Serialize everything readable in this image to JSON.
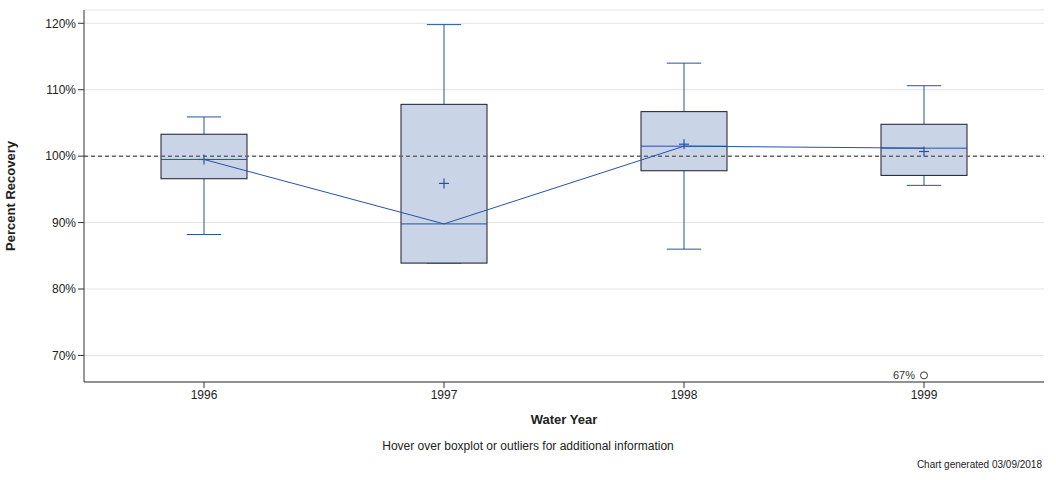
{
  "chart_data": {
    "type": "boxplot",
    "x_label": "Water Year",
    "y_label": "Percent Recovery",
    "footnote": "Hover over boxplot or outliers for additional information",
    "note": "Chart generated 03/09/2018",
    "categories": [
      "1996",
      "1997",
      "1998",
      "1999"
    ],
    "whisker_low": [
      88.2,
      83.9,
      86.0,
      95.6
    ],
    "q1": [
      96.6,
      83.9,
      97.8,
      97.1
    ],
    "median": [
      99.5,
      89.8,
      101.5,
      101.2
    ],
    "q3": [
      103.3,
      107.8,
      106.7,
      104.8
    ],
    "whisker_high": [
      105.9,
      119.8,
      114.0,
      110.6
    ],
    "mean": [
      99.5,
      95.9,
      101.8,
      100.7
    ],
    "outliers": [
      [],
      [],
      [],
      [
        {
          "value": 67,
          "label": "67%"
        }
      ]
    ],
    "reference_line": 100,
    "color": "#2653a3",
    "ylim": [
      66,
      122
    ],
    "yticks": [
      {
        "value": 70,
        "label": "70%"
      },
      {
        "value": 80,
        "label": "80%"
      },
      {
        "value": 90,
        "label": "90%"
      },
      {
        "value": 100,
        "label": "100%"
      },
      {
        "value": 110,
        "label": "110%"
      },
      {
        "value": 120,
        "label": "120%"
      }
    ],
    "grid": true
  }
}
